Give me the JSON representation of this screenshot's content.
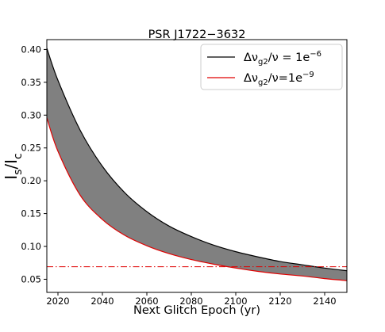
{
  "chart_data": {
    "type": "area",
    "title": "PSR J1722−3632",
    "xlabel": "Next Glitch Epoch (yr)",
    "ylabel": {
      "main": "I",
      "sub1": "s",
      "slash": "/I",
      "sub2": "c"
    },
    "xlim": [
      2015,
      2150
    ],
    "ylim": [
      0.03,
      0.415
    ],
    "x_ticks": [
      2020,
      2040,
      2060,
      2080,
      2100,
      2120,
      2140
    ],
    "x_tick_labels": [
      "2020",
      "2040",
      "2060",
      "2080",
      "2100",
      "2120",
      "2140"
    ],
    "y_ticks": [
      0.05,
      0.1,
      0.15,
      0.2,
      0.25,
      0.3,
      0.35,
      0.4
    ],
    "y_tick_labels": [
      "0.05",
      "0.10",
      "0.15",
      "0.20",
      "0.25",
      "0.30",
      "0.35",
      "0.40"
    ],
    "grid": false,
    "legend_position": "top-right",
    "fill_color": "#808080",
    "series": [
      {
        "name": "Δν_g2/ν = 1e⁻⁶",
        "legend": {
          "delta": "Δν",
          "sub": "g2",
          "rest": "/ν = 1e",
          "sup": "−6"
        },
        "color": "#000000",
        "x": [
          2015,
          2020,
          2030,
          2040,
          2050,
          2060,
          2070,
          2080,
          2090,
          2100,
          2110,
          2120,
          2130,
          2140,
          2150
        ],
        "y": [
          0.402,
          0.353,
          0.277,
          0.222,
          0.182,
          0.153,
          0.131,
          0.115,
          0.102,
          0.092,
          0.084,
          0.077,
          0.072,
          0.067,
          0.063
        ]
      },
      {
        "name": "Δν_g2/ν=1e⁻⁹",
        "legend": {
          "delta": "Δν",
          "sub": "g2",
          "rest": "/ν=1e",
          "sup": "−9"
        },
        "color": "#e00000",
        "x": [
          2015,
          2020,
          2030,
          2040,
          2050,
          2060,
          2070,
          2080,
          2090,
          2100,
          2110,
          2120,
          2130,
          2140,
          2150
        ],
        "y": [
          0.296,
          0.245,
          0.178,
          0.141,
          0.117,
          0.101,
          0.089,
          0.08,
          0.073,
          0.067,
          0.062,
          0.058,
          0.055,
          0.051,
          0.048
        ]
      }
    ],
    "reference_line": {
      "y": 0.069,
      "color": "#e00000",
      "style": "dash-dot"
    }
  }
}
